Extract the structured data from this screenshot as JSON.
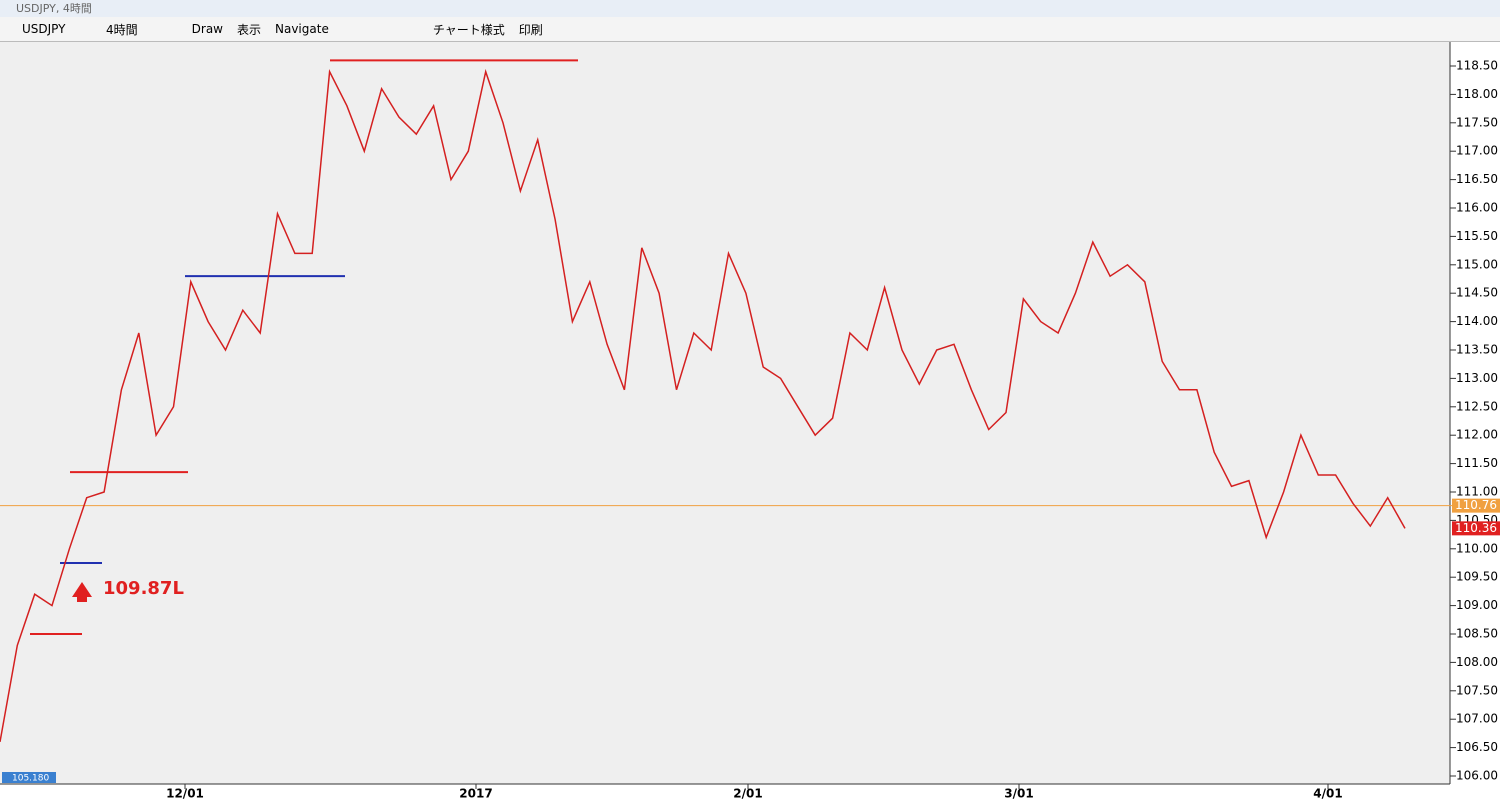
{
  "window": {
    "title": "USDJPY, 4時間"
  },
  "toolbar": {
    "symbol": "USDJPY",
    "timeframe": "4時間",
    "items": [
      "Draw",
      "表示",
      "Navigate",
      "チャート様式",
      "印刷"
    ]
  },
  "chart_data": {
    "type": "line",
    "color": "#d42020",
    "values": [
      106.6,
      108.3,
      109.2,
      109.0,
      110.0,
      110.9,
      111.0,
      112.8,
      113.8,
      112.0,
      112.5,
      114.7,
      114.0,
      113.5,
      114.2,
      113.8,
      115.9,
      115.2,
      115.2,
      118.4,
      117.8,
      117.0,
      118.1,
      117.6,
      117.3,
      117.8,
      116.5,
      117.0,
      118.4,
      117.5,
      116.3,
      117.2,
      115.8,
      114.0,
      114.7,
      113.6,
      112.8,
      115.3,
      114.5,
      112.8,
      113.8,
      113.5,
      115.2,
      114.5,
      113.2,
      113.0,
      112.5,
      112.0,
      112.3,
      113.8,
      113.5,
      114.6,
      113.5,
      112.9,
      113.5,
      113.6,
      112.8,
      112.1,
      112.4,
      114.4,
      114.0,
      113.8,
      114.5,
      115.4,
      114.8,
      115.0,
      114.7,
      113.3,
      112.8,
      112.8,
      111.7,
      111.1,
      111.2,
      110.2,
      111.0,
      112.0,
      111.3,
      111.3,
      110.8,
      110.4,
      110.9,
      110.36
    ],
    "ylim": [
      106.0,
      118.5
    ],
    "yticks": [
      {
        "value": 106,
        "label": "106.00"
      },
      {
        "value": 106.5,
        "label": "106.50"
      },
      {
        "value": 107,
        "label": "107.00"
      },
      {
        "value": 107.5,
        "label": "107.50"
      },
      {
        "value": 108,
        "label": "108.00"
      },
      {
        "value": 108.5,
        "label": "108.50"
      },
      {
        "value": 109,
        "label": "109.00"
      },
      {
        "value": 109.5,
        "label": "109.50"
      },
      {
        "value": 110,
        "label": "110.00"
      },
      {
        "value": 110.5,
        "label": "110.50"
      },
      {
        "value": 111,
        "label": "111.00"
      },
      {
        "value": 111.5,
        "label": "111.50"
      },
      {
        "value": 112,
        "label": "112.00"
      },
      {
        "value": 112.5,
        "label": "112.50"
      },
      {
        "value": 113,
        "label": "113.00"
      },
      {
        "value": 113.5,
        "label": "113.50"
      },
      {
        "value": 114,
        "label": "114.00"
      },
      {
        "value": 114.5,
        "label": "114.50"
      },
      {
        "value": 115,
        "label": "115.00"
      },
      {
        "value": 115.5,
        "label": "115.50"
      },
      {
        "value": 116,
        "label": "116.00"
      },
      {
        "value": 116.5,
        "label": "116.50"
      },
      {
        "value": 117,
        "label": "117.00"
      },
      {
        "value": 117.5,
        "label": "117.50"
      },
      {
        "value": 118,
        "label": "118.00"
      },
      {
        "value": 118.5,
        "label": "118.50"
      }
    ],
    "xlabels": [
      "12/01",
      "2017",
      "2/01",
      "3/01",
      "4/01"
    ],
    "levels": [
      {
        "value": 118.6,
        "color": "#e02020"
      },
      {
        "value": 114.8,
        "color": "#2030b0"
      },
      {
        "value": 111.35,
        "color": "#e02020"
      },
      {
        "value": 109.75,
        "color": "#2030b0"
      },
      {
        "value": 108.5,
        "color": "#e02020"
      },
      {
        "value": 110.76,
        "color": "#f0a040"
      }
    ],
    "price_tags": [
      {
        "value": 110.76,
        "color": "#f0a040"
      },
      {
        "value": 110.36,
        "color": "#e02020"
      }
    ],
    "low_marker": {
      "value": 105.18,
      "label": "105.180"
    },
    "annotation": "109.87L"
  }
}
